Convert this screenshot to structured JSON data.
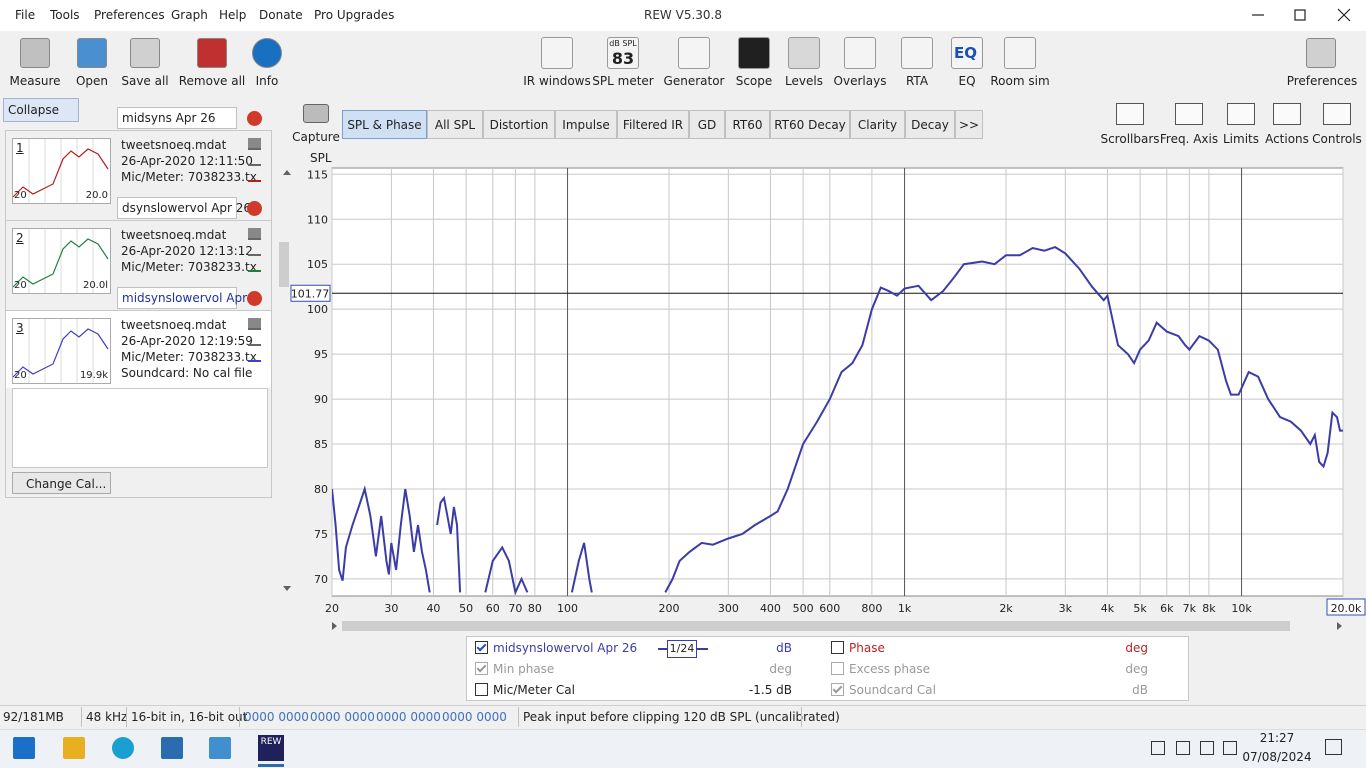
{
  "window": {
    "title": "REW V5.30.8",
    "menu": [
      "File",
      "Tools",
      "Preferences",
      "Graph",
      "Help",
      "Donate",
      "Pro Upgrades"
    ]
  },
  "toolbar": {
    "left": [
      "Measure",
      "Open",
      "Save all",
      "Remove all",
      "Info"
    ],
    "center": [
      "IR windows",
      "SPL meter",
      "Generator",
      "Scope",
      "Levels",
      "Overlays",
      "RTA",
      "EQ",
      "Room sim"
    ],
    "spl_icon": {
      "unit": "dB SPL",
      "value": "83"
    },
    "eq_icon": "EQ",
    "right": "Preferences"
  },
  "graph_tools": [
    "Scrollbars",
    "Freq. Axis",
    "Limits",
    "Actions",
    "Controls"
  ],
  "panel": {
    "collapse": "Collapse",
    "change_cal": "Change Cal...",
    "measurements": [
      {
        "index": "1",
        "name": "midsyns Apr 26",
        "color": "#b02020",
        "lines": [
          "tweetsnoeq.mdat",
          "26-Apr-2020 12:11:50",
          "Mic/Meter: 7038233.tx"
        ],
        "thumb": [
          "20",
          "20.0"
        ]
      },
      {
        "index": "2",
        "name": "dsynslowervol Apr 26",
        "color": "#208040",
        "lines": [
          "tweetsnoeq.mdat",
          "26-Apr-2020 12:13:12",
          "Mic/Meter: 7038233.tx"
        ],
        "thumb": [
          "20",
          "20.0l"
        ]
      },
      {
        "index": "3",
        "name": "midsynslowervol Apr",
        "color": "#4040c0",
        "lines": [
          "tweetsnoeq.mdat",
          "26-Apr-2020 12:19:59",
          "Mic/Meter: 7038233.tx",
          "Soundcard: No cal file"
        ],
        "thumb": [
          "20",
          "19.9k"
        ]
      }
    ]
  },
  "capture": "Capture",
  "tabs": [
    "SPL & Phase",
    "All SPL",
    "Distortion",
    "Impulse",
    "Filtered IR",
    "GD",
    "RT60",
    "RT60 Decay",
    "Clarity",
    "Decay",
    ">>"
  ],
  "chart_data": {
    "type": "line",
    "y_label": "SPL",
    "log_x": true,
    "grid": true,
    "cursor_y": 101.77,
    "xlim": [
      20,
      20000
    ],
    "ylim": [
      68.1,
      115.7
    ],
    "yticks": [
      70,
      75,
      80,
      85,
      90,
      95,
      100,
      105,
      110,
      115
    ],
    "xticks": [
      20,
      30,
      40,
      50,
      60,
      70,
      80,
      100,
      200,
      300,
      400,
      500,
      600,
      800,
      {
        "value": 1000,
        "label": "1k"
      },
      {
        "value": 2000,
        "label": "2k"
      },
      {
        "value": 3000,
        "label": "3k"
      },
      {
        "value": 4000,
        "label": "4k"
      },
      {
        "value": 5000,
        "label": "5k"
      },
      {
        "value": 6000,
        "label": "6k"
      },
      {
        "value": 7000,
        "label": "7k"
      },
      {
        "value": 8000,
        "label": "8k"
      },
      {
        "value": 10000,
        "label": "10k"
      },
      {
        "value": 20000,
        "label": "20.0k"
      }
    ],
    "x": [
      20,
      20.5,
      21,
      21.5,
      22,
      23,
      24,
      25,
      26,
      27,
      28,
      29,
      29.5,
      30,
      31,
      32,
      33,
      34,
      35,
      36,
      37,
      38,
      39,
      40,
      41,
      42,
      43,
      44,
      45,
      46,
      47,
      48,
      50,
      57,
      60,
      64,
      67,
      70,
      73,
      76,
      90,
      103,
      108,
      112,
      116,
      118,
      150,
      195,
      205,
      215,
      230,
      250,
      270,
      300,
      330,
      360,
      400,
      420,
      450,
      500,
      550,
      600,
      650,
      700,
      750,
      800,
      850,
      900,
      950,
      1000,
      1100,
      1200,
      1300,
      1400,
      1500,
      1700,
      1850,
      2000,
      2200,
      2400,
      2600,
      2800,
      3000,
      3300,
      3600,
      3900,
      4000,
      4300,
      4600,
      4800,
      5000,
      5300,
      5600,
      6000,
      6500,
      6800,
      7000,
      7500,
      8000,
      8500,
      9000,
      9300,
      9800,
      10500,
      11200,
      12000,
      13000,
      14000,
      15000,
      16000,
      16500,
      17000,
      17500,
      18000,
      18600,
      19200,
      19600,
      20000
    ],
    "series": [
      {
        "name": "midsynslowervol Apr 26",
        "color": "#3c3ca8",
        "values": [
          80,
          76,
          71,
          69.8,
          73.5,
          76,
          78,
          80,
          77,
          72.5,
          77,
          72,
          70.5,
          74,
          71,
          76,
          80,
          77,
          73,
          76,
          73,
          71,
          68.5,
          null,
          76,
          78.5,
          79,
          77,
          75,
          78,
          76,
          68.5,
          null,
          68.5,
          72,
          73.5,
          72,
          68.5,
          70,
          68.5,
          null,
          68.5,
          72,
          74,
          70,
          68.5,
          null,
          68.5,
          70,
          72,
          73,
          74,
          73.8,
          74.5,
          75,
          76,
          77,
          77.5,
          80,
          85,
          87.5,
          90,
          93,
          94,
          96,
          100,
          102.4,
          102,
          101.5,
          102.3,
          102.6,
          101,
          102,
          103.5,
          105,
          105.3,
          105,
          106,
          106,
          106.8,
          106.5,
          106.9,
          106.2,
          104.5,
          102.5,
          101,
          101.5,
          96,
          95,
          94,
          95.5,
          96.5,
          98.5,
          97.5,
          97,
          96,
          95.5,
          97,
          96.5,
          95.5,
          92,
          90.5,
          90.5,
          93,
          92.5,
          90,
          88,
          87.5,
          86.5,
          85,
          86,
          83,
          82.5,
          84,
          88.5,
          88,
          86.5,
          86.5
        ]
      }
    ]
  },
  "legend_panel": {
    "smoothing": "1/24",
    "items": [
      {
        "unit": "dB",
        "checked": true,
        "enabled": true,
        "color": "#3c3ca8"
      },
      {
        "label": "Min phase",
        "unit": "deg",
        "checked": true,
        "enabled": false,
        "color": "#999999"
      },
      {
        "label": "Mic/Meter Cal",
        "unit": "-1.5 dB",
        "checked": false,
        "enabled": true,
        "color": "#222222"
      },
      {
        "label": "Phase",
        "unit": "deg",
        "checked": false,
        "enabled": true,
        "color": "#c02020"
      },
      {
        "label": "Excess phase",
        "unit": "deg",
        "checked": false,
        "enabled": false,
        "color": "#999999"
      },
      {
        "label": "Soundcard Cal",
        "unit": "dB",
        "checked": true,
        "enabled": false,
        "color": "#999999"
      }
    ]
  },
  "status": [
    "92/181MB",
    "48 kHz",
    "16-bit in, 16-bit out",
    "0000 0000",
    "0000 0000",
    "0000 0000",
    "0000 0000",
    "Peak input before clipping 120 dB SPL (uncalibrated)"
  ],
  "taskbar": {
    "app": "REW",
    "time": "21:27",
    "date": "07/08/2024"
  }
}
